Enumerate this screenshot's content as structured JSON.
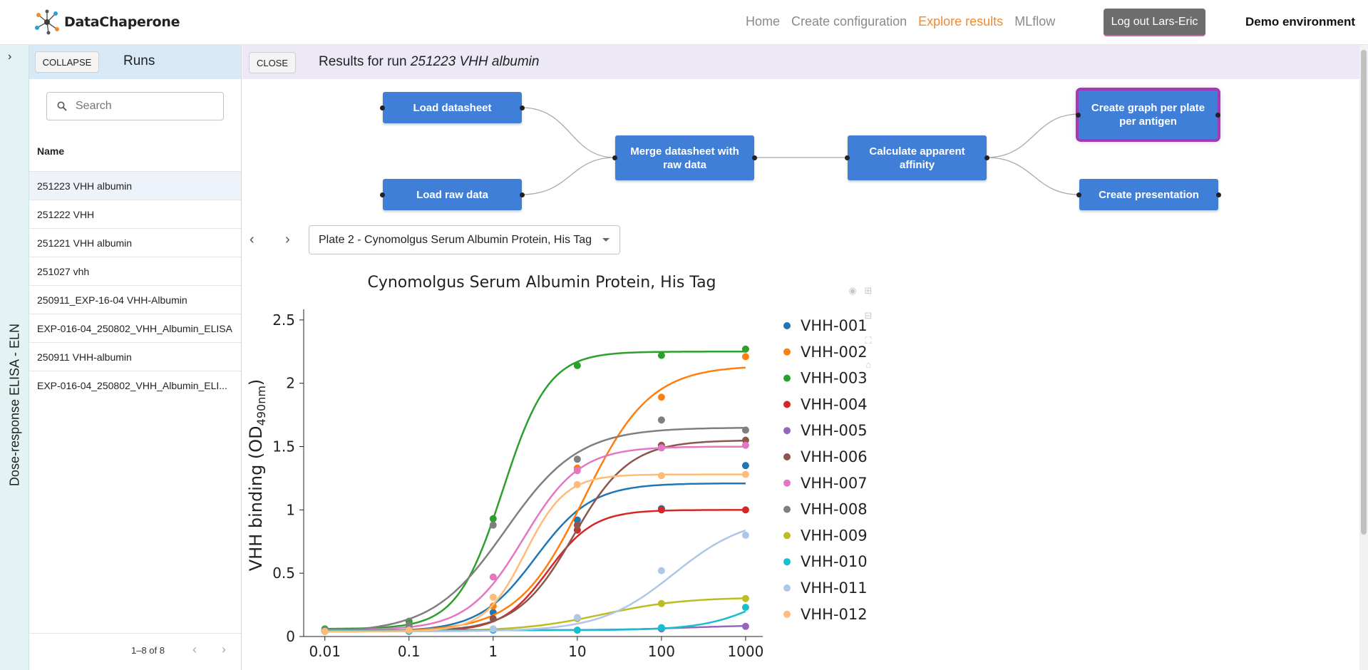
{
  "header": {
    "logo_text": "DataChaperone",
    "nav": [
      {
        "label": "Home",
        "active": false
      },
      {
        "label": "Create configuration",
        "active": false
      },
      {
        "label": "Explore results",
        "active": true
      },
      {
        "label": "MLflow",
        "active": false
      }
    ],
    "logout_label": "Log out Lars-Eric",
    "environment": "Demo environment"
  },
  "strip": {
    "label": "Dose-response ELISA - ELN"
  },
  "runs_panel": {
    "collapse_label": "COLLAPSE",
    "title": "Runs",
    "search_placeholder": "Search",
    "column_name": "Name",
    "rows": [
      "251223 VHH albumin",
      "251222 VHH",
      "251221 VHH albumin",
      "251027 vhh",
      "250911_EXP-16-04 VHH-Albumin",
      "EXP-016-04_250802_VHH_Albumin_ELISA",
      "250911 VHH-albumin",
      "EXP-016-04_250802_VHH_Albumin_ELI..."
    ],
    "selected_index": 0,
    "pager": "1–8 of 8"
  },
  "results": {
    "close_label": "CLOSE",
    "title_prefix": "Results for run ",
    "run_name": "251223 VHH albumin",
    "pipeline": {
      "load_datasheet": "Load datasheet",
      "load_raw": "Load raw data",
      "merge": "Merge datasheet with raw data",
      "calc": "Calculate apparent affinity",
      "graph": "Create graph per plate per antigen",
      "presentation": "Create presentation"
    },
    "plate_selected": "Plate 2 - Cynomolgus Serum Albumin Protein, His Tag"
  },
  "chart_data": {
    "type": "scatter",
    "title": "Cynomolgus Serum Albumin Protein, His Tag",
    "xlabel": "",
    "ylabel": "VHH binding (OD490nm)",
    "x_scale": "log",
    "xlim": [
      0.0056,
      1600
    ],
    "ylim": [
      0,
      2.55
    ],
    "x_ticks": [
      "0.01",
      "0.1",
      "1",
      "10",
      "100",
      "1000"
    ],
    "y_ticks": [
      "0",
      "0.5",
      "1",
      "1.5",
      "2",
      "2.5"
    ],
    "x": [
      0.01,
      0.1,
      1,
      10,
      100,
      1000
    ],
    "legend_position": "right",
    "series": [
      {
        "name": "VHH-001",
        "color": "#1f77b4",
        "points": [
          0.04,
          0.07,
          0.19,
          0.92,
          1.01,
          1.35
        ],
        "fit": {
          "bottom": 0.04,
          "top": 1.21,
          "ec50": 3.2,
          "hill": 1.3
        }
      },
      {
        "name": "VHH-002",
        "color": "#ff7f0e",
        "points": [
          0.04,
          0.05,
          0.24,
          1.33,
          1.89,
          2.21
        ],
        "fit": {
          "bottom": 0.04,
          "top": 2.14,
          "ec50": 12,
          "hill": 1.1
        }
      },
      {
        "name": "VHH-003",
        "color": "#2ca02c",
        "points": [
          0.06,
          0.12,
          0.93,
          2.14,
          2.22,
          2.27
        ],
        "fit": {
          "bottom": 0.06,
          "top": 2.25,
          "ec50": 1.3,
          "hill": 1.6
        }
      },
      {
        "name": "VHH-004",
        "color": "#d62728",
        "points": [
          0.04,
          0.06,
          0.14,
          0.84,
          1.0,
          1.0
        ],
        "fit": {
          "bottom": 0.04,
          "top": 1.0,
          "ec50": 4.5,
          "hill": 1.6
        }
      },
      {
        "name": "VHH-005",
        "color": "#9467bd",
        "points": [
          0.05,
          0.05,
          0.05,
          0.05,
          0.06,
          0.08
        ],
        "fit": {
          "bottom": 0.05,
          "top": 0.09,
          "ec50": 200,
          "hill": 1.0
        }
      },
      {
        "name": "VHH-006",
        "color": "#8c564b",
        "points": [
          0.04,
          0.05,
          0.14,
          0.88,
          1.51,
          1.55
        ],
        "fit": {
          "bottom": 0.04,
          "top": 1.55,
          "ec50": 9,
          "hill": 1.3
        }
      },
      {
        "name": "VHH-007",
        "color": "#e377c2",
        "points": [
          0.05,
          0.06,
          0.47,
          1.31,
          1.49,
          1.51
        ],
        "fit": {
          "bottom": 0.05,
          "top": 1.5,
          "ec50": 2.3,
          "hill": 1.3
        }
      },
      {
        "name": "VHH-008",
        "color": "#7f7f7f",
        "points": [
          0.05,
          0.09,
          0.88,
          1.4,
          1.71,
          1.63
        ],
        "fit": {
          "bottom": 0.03,
          "top": 1.65,
          "ec50": 1.4,
          "hill": 1.0
        }
      },
      {
        "name": "VHH-009",
        "color": "#bcbd22",
        "points": [
          0.04,
          0.05,
          0.06,
          0.14,
          0.26,
          0.3
        ],
        "fit": {
          "bottom": 0.04,
          "top": 0.31,
          "ec50": 20,
          "hill": 0.9
        }
      },
      {
        "name": "VHH-010",
        "color": "#17becf",
        "points": [
          0.04,
          0.04,
          0.05,
          0.05,
          0.07,
          0.23
        ],
        "fit": {
          "bottom": 0.05,
          "top": 0.5,
          "ec50": 1800,
          "hill": 1.2
        }
      },
      {
        "name": "VHH-011",
        "color": "#aec7e8",
        "points": [
          0.04,
          0.05,
          0.06,
          0.15,
          0.52,
          0.8
        ],
        "fit": {
          "bottom": 0.04,
          "top": 0.95,
          "ec50": 140,
          "hill": 1.0
        }
      },
      {
        "name": "VHH-012",
        "color": "#ffbb78",
        "points": [
          0.04,
          0.05,
          0.31,
          1.2,
          1.27,
          1.28
        ],
        "fit": {
          "bottom": 0.04,
          "top": 1.28,
          "ec50": 2.4,
          "hill": 1.8
        }
      }
    ]
  }
}
